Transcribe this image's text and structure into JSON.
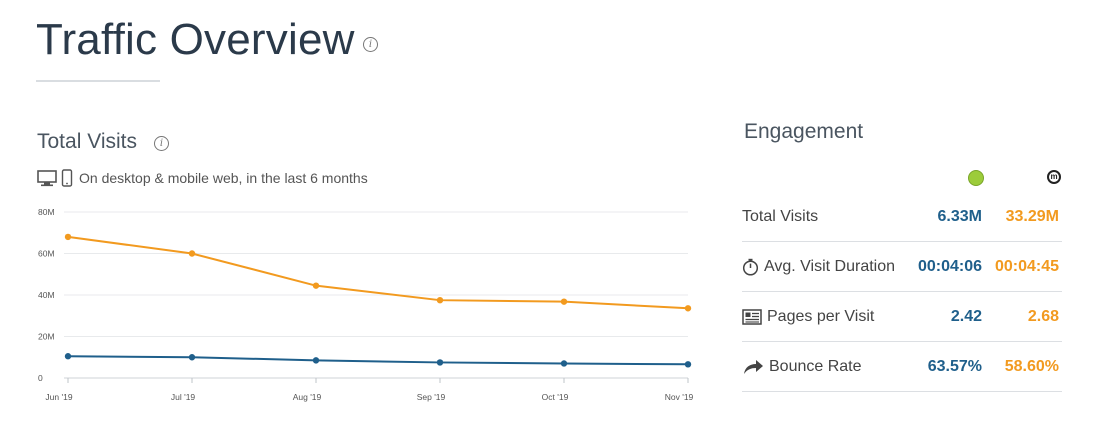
{
  "header": {
    "title": "Traffic Overview"
  },
  "total_visits": {
    "title": "Total Visits",
    "subtitle": "On desktop & mobile web, in the last 6 months"
  },
  "chart_data": {
    "type": "line",
    "x": [
      "Jun '19",
      "Jul '19",
      "Aug '19",
      "Sep '19",
      "Oct '19",
      "Nov '19"
    ],
    "y_ticks": [
      "80M",
      "60M",
      "40M",
      "20M",
      "0"
    ],
    "ylim": [
      0,
      80000000
    ],
    "grid": true,
    "series": [
      {
        "color": "#f29a1f",
        "values": [
          68000000,
          60000000,
          44500000,
          37500000,
          36800000,
          33600000
        ]
      },
      {
        "color": "#1f5f8b",
        "values": [
          10500000,
          10000000,
          8500000,
          7500000,
          7000000,
          6600000
        ]
      }
    ],
    "title": "",
    "xlabel": "",
    "ylabel": ""
  },
  "engagement": {
    "title": "Engagement",
    "rows": [
      {
        "label": "Total Visits",
        "icon": "none",
        "a": "6.33M",
        "b": "33.29M"
      },
      {
        "label": "Avg. Visit Duration",
        "icon": "stopwatch-icon",
        "a": "00:04:06",
        "b": "00:04:45"
      },
      {
        "label": "Pages per Visit",
        "icon": "pages-icon",
        "a": "2.42",
        "b": "2.68"
      },
      {
        "label": "Bounce Rate",
        "icon": "bounce-arrow-icon",
        "a": "63.57%",
        "b": "58.60%"
      }
    ]
  },
  "colors": {
    "site_a": "#1f5f8b",
    "site_b": "#f29a1f"
  }
}
